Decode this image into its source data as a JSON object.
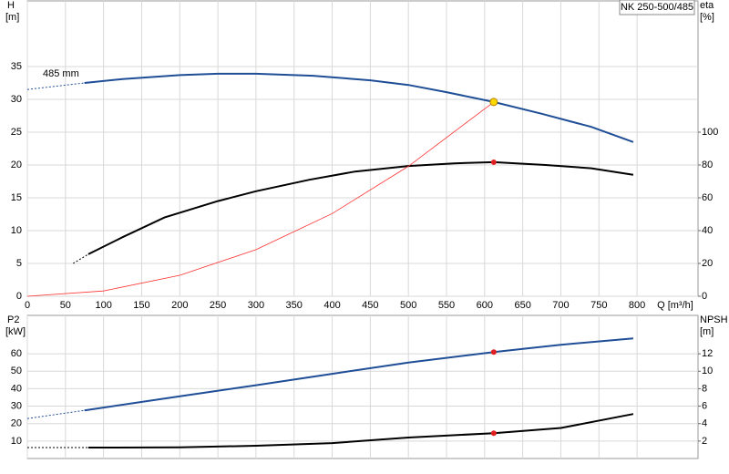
{
  "chart_data": [
    {
      "type": "line",
      "title": "NK 250-500/485",
      "annotation": "485 mm",
      "ylabel": "H",
      "yunit": "[m]",
      "y2label": "eta",
      "y2unit": "[%]",
      "xlabel": "Q [m³/h]",
      "xlim": [
        0,
        880
      ],
      "xticks": [
        0,
        50,
        100,
        150,
        200,
        250,
        300,
        350,
        400,
        450,
        500,
        550,
        600,
        650,
        700,
        750,
        800
      ],
      "ylim": [
        0,
        45
      ],
      "yticks": [
        0,
        5,
        10,
        15,
        20,
        25,
        30,
        35
      ],
      "y2lim": [
        0,
        180
      ],
      "y2ticks": [
        0,
        20,
        40,
        60,
        80,
        100
      ],
      "grid": true,
      "series": [
        {
          "color": "#1f4e96",
          "style": "dashed",
          "x": [
            0,
            75
          ],
          "values": [
            31.5,
            32.5
          ]
        },
        {
          "color": "#1f4e96",
          "style": "solid",
          "x": [
            75,
            125,
            200,
            250,
            300,
            375,
            450,
            500,
            550,
            612,
            675,
            740,
            795
          ],
          "values": [
            32.5,
            33.1,
            33.7,
            33.9,
            33.9,
            33.6,
            32.9,
            32.2,
            31.1,
            29.6,
            27.8,
            25.8,
            23.5
          ]
        },
        {
          "color": "#000000",
          "style": "dashed",
          "axis": "y2",
          "x": [
            60,
            80
          ],
          "values": [
            20,
            25.6
          ]
        },
        {
          "color": "#000000",
          "style": "solid",
          "axis": "y2",
          "x": [
            80,
            125,
            180,
            250,
            300,
            370,
            430,
            500,
            560,
            612,
            680,
            740,
            795
          ],
          "values": [
            25.6,
            36,
            48,
            58,
            64,
            71,
            76,
            79.4,
            81,
            81.7,
            80,
            78,
            74
          ]
        },
        {
          "color": "#ff3030",
          "style": "thin",
          "x": [
            0,
            100,
            200,
            300,
            400,
            500,
            612
          ],
          "values": [
            0,
            0.8,
            3.2,
            7.1,
            12.6,
            19.8,
            29.6
          ]
        }
      ],
      "points": [
        {
          "x": 612,
          "y": 29.6,
          "color": "#ffd700"
        },
        {
          "x": 612,
          "y": 81.7,
          "axis": "y2",
          "color": "#e02020"
        }
      ]
    },
    {
      "type": "line",
      "ylabel": "P2",
      "yunit": "[kW]",
      "y2label": "NPSH",
      "y2unit": "[m]",
      "xlim": [
        0,
        880
      ],
      "ylim": [
        0,
        82
      ],
      "yticks": [
        10,
        20,
        30,
        40,
        50,
        60
      ],
      "y2lim": [
        0,
        16.4
      ],
      "y2ticks": [
        2,
        4,
        6,
        8,
        10,
        12
      ],
      "grid": true,
      "series": [
        {
          "color": "#1f4e96",
          "style": "dashed",
          "x": [
            0,
            75
          ],
          "values": [
            22.9,
            27.6
          ]
        },
        {
          "color": "#1f4e96",
          "style": "solid",
          "x": [
            75,
            200,
            300,
            400,
            500,
            612,
            700,
            795
          ],
          "values": [
            27.6,
            35.6,
            42,
            48.5,
            55,
            61,
            65.2,
            68.8
          ]
        },
        {
          "color": "#000000",
          "style": "dashed",
          "axis": "y2",
          "x": [
            0,
            80
          ],
          "values": [
            1.25,
            1.25
          ]
        },
        {
          "color": "#000000",
          "style": "solid",
          "axis": "y2",
          "x": [
            80,
            200,
            300,
            400,
            500,
            612,
            700,
            795
          ],
          "values": [
            1.25,
            1.27,
            1.46,
            1.77,
            2.4,
            2.9,
            3.5,
            5.1
          ]
        }
      ],
      "points": [
        {
          "x": 612,
          "y": 61,
          "color": "#e02020"
        },
        {
          "x": 612,
          "y": 2.9,
          "axis": "y2",
          "color": "#e02020"
        }
      ]
    }
  ]
}
